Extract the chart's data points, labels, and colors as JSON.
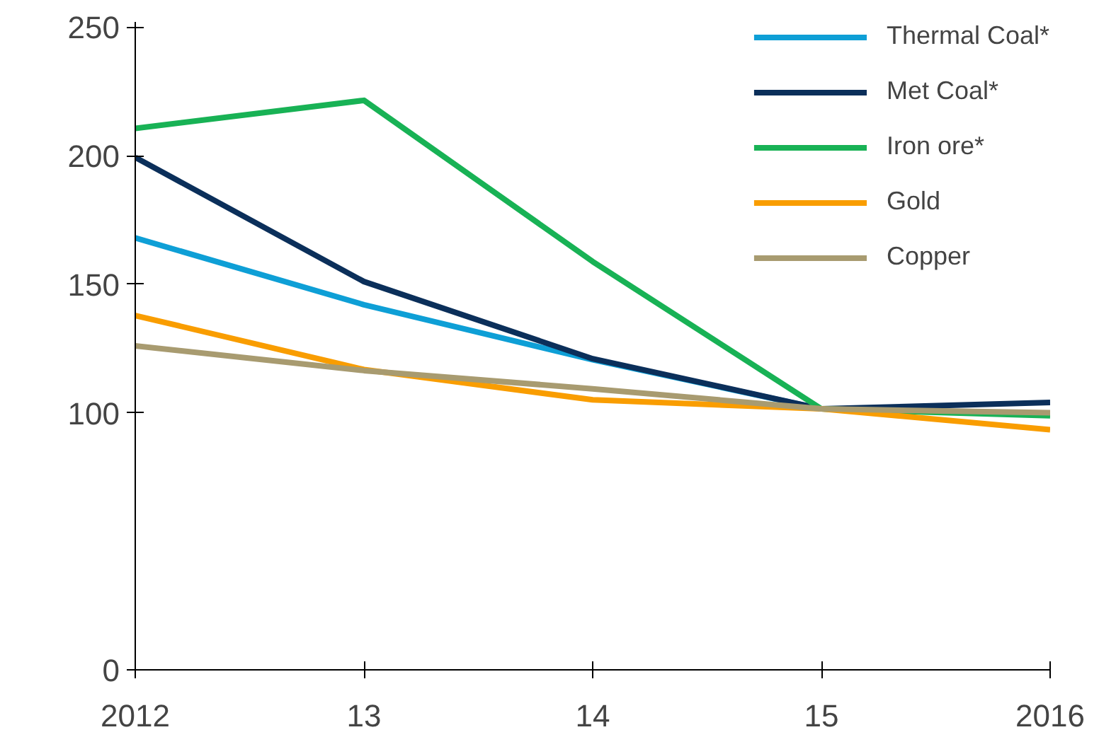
{
  "chart_data": {
    "type": "line",
    "categories": [
      "2012",
      "13",
      "14",
      "15",
      "2016"
    ],
    "series": [
      {
        "name": "Thermal Coal*",
        "color": "#0e9fd6",
        "values": [
          168,
          142,
          120.6,
          101.5,
          99.6
        ]
      },
      {
        "name": "Met Coal*",
        "color": "#0b2f5a",
        "values": [
          199.3,
          151,
          121,
          101.5,
          104
        ]
      },
      {
        "name": "Iron ore*",
        "color": "#18b255",
        "values": [
          210.6,
          221.5,
          158.8,
          101.5,
          98.8
        ]
      },
      {
        "name": "Gold",
        "color": "#f99d00",
        "values": [
          137.8,
          116.8,
          105,
          101.5,
          93.4
        ]
      },
      {
        "name": "Copper",
        "color": "#a89b70",
        "values": [
          126,
          116.4,
          109.3,
          101.5,
          100
        ]
      }
    ],
    "ylim": [
      0,
      252
    ],
    "yticks": [
      0,
      100,
      150,
      200,
      250
    ],
    "grid": false,
    "legend": "top right",
    "marker": "none",
    "line_style": "solid"
  }
}
